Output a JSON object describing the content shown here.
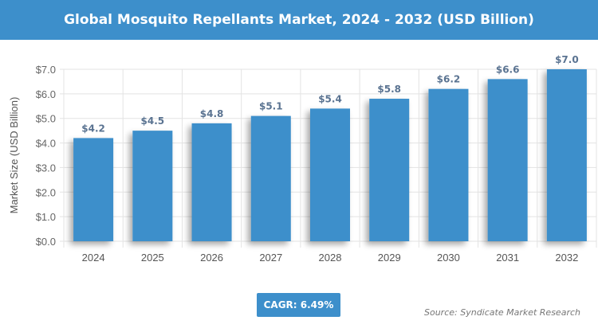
{
  "chart_data": {
    "type": "bar",
    "title": "Global Mosquito Repellants Market, 2024 - 2032 (USD Billion)",
    "ylabel": "Market Size (USD Billion)",
    "xlabel": "",
    "categories": [
      "2024",
      "2025",
      "2026",
      "2027",
      "2028",
      "2029",
      "2030",
      "2031",
      "2032"
    ],
    "values": [
      4.2,
      4.5,
      4.8,
      5.1,
      5.4,
      5.8,
      6.2,
      6.6,
      7.0
    ],
    "data_labels": [
      "$4.2",
      "$4.5",
      "$4.8",
      "$5.1",
      "$5.4",
      "$5.8",
      "$6.2",
      "$6.6",
      "$7.0"
    ],
    "ylim": [
      0,
      7
    ],
    "yticks": [
      "$0.0",
      "$1.0",
      "$2.0",
      "$3.0",
      "$4.0",
      "$5.0",
      "$6.0",
      "$7.0"
    ],
    "grid": true,
    "bar_color": "#3d8fcb",
    "label_color": "#5a7391"
  },
  "cagr": "CAGR: 6.49%",
  "source": "Source: Syndicate Market Research"
}
